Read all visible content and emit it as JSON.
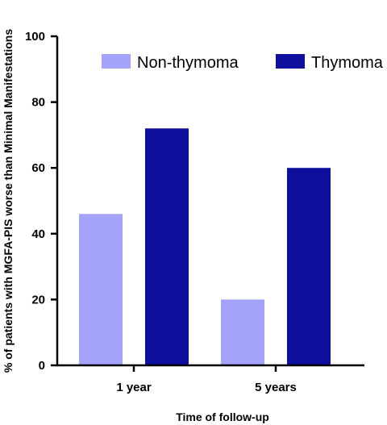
{
  "chart_data": {
    "type": "bar",
    "categories": [
      "1 year",
      "5 years"
    ],
    "series": [
      {
        "name": "Non-thymoma",
        "values": [
          46,
          20
        ],
        "color": "#a3a3fa"
      },
      {
        "name": "Thymoma",
        "values": [
          72,
          60
        ],
        "color": "#0f0f9e"
      }
    ],
    "xlabel": "Time of follow-up",
    "ylabel": "% of patients with MGFA-PIS worse than Minimal Manifestations",
    "ylim": [
      0,
      100
    ],
    "yticks": [
      0,
      20,
      40,
      60,
      80,
      100
    ],
    "grid": false,
    "legend_position": "top"
  }
}
